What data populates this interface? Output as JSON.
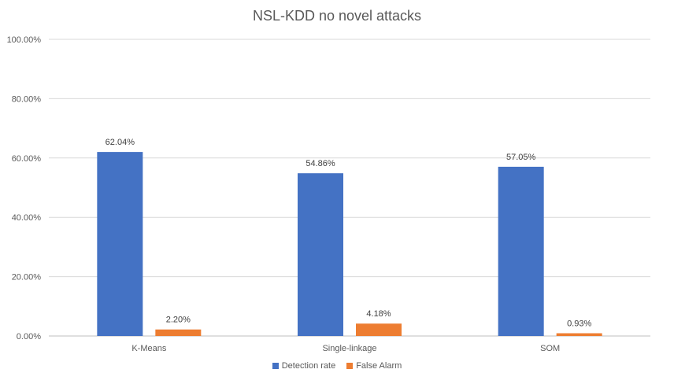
{
  "chart_data": {
    "type": "bar",
    "title": "NSL-KDD no novel attacks",
    "xlabel": "",
    "ylabel": "",
    "categories": [
      "K-Means",
      "Single-linkage",
      "SOM"
    ],
    "series": [
      {
        "name": "Detection rate",
        "color": "#4472C4",
        "values": [
          62.04,
          54.86,
          57.05
        ],
        "labels": [
          "62.04%",
          "54.86%",
          "57.05%"
        ]
      },
      {
        "name": "False Alarm",
        "color": "#ED7D31",
        "values": [
          2.2,
          4.18,
          0.93
        ],
        "labels": [
          "2.20%",
          "4.18%",
          "0.93%"
        ]
      }
    ],
    "ylim": [
      0,
      100
    ],
    "yticks": [
      0,
      20,
      40,
      60,
      80,
      100
    ],
    "ytick_labels": [
      "0.00%",
      "20.00%",
      "40.00%",
      "60.00%",
      "80.00%",
      "100.00%"
    ],
    "grid": true,
    "legend_position": "bottom"
  }
}
